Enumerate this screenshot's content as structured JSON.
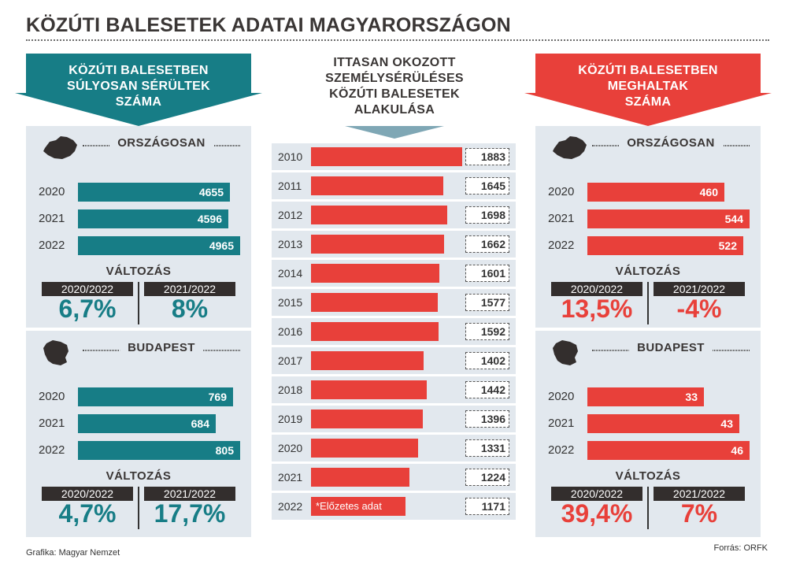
{
  "title": "KÖZÚTI BALESETEK ADATAI MAGYARORSZÁGON",
  "colors": {
    "teal": "#177d86",
    "red": "#e8403a",
    "dark": "#332e2d",
    "panel": "#e2e8ee"
  },
  "left": {
    "header": [
      "KÖZÚTI BALESETBEN",
      "SÚLYOSAN SÉRÜLTEK",
      "SZÁMA"
    ],
    "country": {
      "label": "ORSZÁGOSAN",
      "rows": [
        {
          "year": "2020",
          "value": "4655"
        },
        {
          "year": "2021",
          "value": "4596"
        },
        {
          "year": "2022",
          "value": "4965"
        }
      ],
      "change_title": "VÁLTOZÁS",
      "periods": [
        {
          "label": "2020/2022",
          "value": "6,7%"
        },
        {
          "label": "2021/2022",
          "value": "8%"
        }
      ]
    },
    "budapest": {
      "label": "BUDAPEST",
      "rows": [
        {
          "year": "2020",
          "value": "769"
        },
        {
          "year": "2021",
          "value": "684"
        },
        {
          "year": "2022",
          "value": "805"
        }
      ],
      "change_title": "VÁLTOZÁS",
      "periods": [
        {
          "label": "2020/2022",
          "value": "4,7%"
        },
        {
          "label": "2021/2022",
          "value": "17,7%"
        }
      ]
    }
  },
  "middle": {
    "header": [
      "ITTASAN OKOZOTT",
      "SZEMÉLYSÉRÜLÉSES",
      "KÖZÚTI BALESETEK",
      "ALAKULÁSA"
    ],
    "note": "*Előzetes adat",
    "rows": [
      {
        "year": "2010",
        "value": "1883"
      },
      {
        "year": "2011",
        "value": "1645"
      },
      {
        "year": "2012",
        "value": "1698"
      },
      {
        "year": "2013",
        "value": "1662"
      },
      {
        "year": "2014",
        "value": "1601"
      },
      {
        "year": "2015",
        "value": "1577"
      },
      {
        "year": "2016",
        "value": "1592"
      },
      {
        "year": "2017",
        "value": "1402"
      },
      {
        "year": "2018",
        "value": "1442"
      },
      {
        "year": "2019",
        "value": "1396"
      },
      {
        "year": "2020",
        "value": "1331"
      },
      {
        "year": "2021",
        "value": "1224"
      },
      {
        "year": "2022",
        "value": "1171"
      }
    ]
  },
  "right": {
    "header": [
      "KÖZÚTI BALESETBEN",
      "MEGHALTAK",
      "SZÁMA"
    ],
    "country": {
      "label": "ORSZÁGOSAN",
      "rows": [
        {
          "year": "2020",
          "value": "460"
        },
        {
          "year": "2021",
          "value": "544"
        },
        {
          "year": "2022",
          "value": "522"
        }
      ],
      "change_title": "VÁLTOZÁS",
      "periods": [
        {
          "label": "2020/2022",
          "value": "13,5%"
        },
        {
          "label": "2021/2022",
          "value": "-4%"
        }
      ]
    },
    "budapest": {
      "label": "BUDAPEST",
      "rows": [
        {
          "year": "2020",
          "value": "33"
        },
        {
          "year": "2021",
          "value": "43"
        },
        {
          "year": "2022",
          "value": "46"
        }
      ],
      "change_title": "VÁLTOZÁS",
      "periods": [
        {
          "label": "2020/2022",
          "value": "39,4%"
        },
        {
          "label": "2021/2022",
          "value": "7%"
        }
      ]
    }
  },
  "footer": {
    "credit": "Grafika: Magyar Nemzet",
    "source": "Forrás: ORFK"
  },
  "chart_data": [
    {
      "type": "bar",
      "title": "KÖZÚTI BALESETBEN SÚLYOSAN SÉRÜLTEK SZÁMA",
      "series": [
        {
          "name": "ORSZÁGOSAN",
          "categories": [
            "2020",
            "2021",
            "2022"
          ],
          "values": [
            4655,
            4596,
            4965
          ]
        },
        {
          "name": "BUDAPEST",
          "categories": [
            "2020",
            "2021",
            "2022"
          ],
          "values": [
            769,
            684,
            805
          ]
        }
      ]
    },
    {
      "type": "bar",
      "title": "ITTASAN OKOZOTT SZEMÉLYSÉRÜLÉSES KÖZÚTI BALESETEK ALAKULÁSA",
      "categories": [
        "2010",
        "2011",
        "2012",
        "2013",
        "2014",
        "2015",
        "2016",
        "2017",
        "2018",
        "2019",
        "2020",
        "2021",
        "2022"
      ],
      "values": [
        1883,
        1645,
        1698,
        1662,
        1601,
        1577,
        1592,
        1402,
        1442,
        1396,
        1331,
        1224,
        1171
      ]
    },
    {
      "type": "bar",
      "title": "KÖZÚTI BALESETBEN MEGHALTAK SZÁMA",
      "series": [
        {
          "name": "ORSZÁGOSAN",
          "categories": [
            "2020",
            "2021",
            "2022"
          ],
          "values": [
            460,
            544,
            522
          ]
        },
        {
          "name": "BUDAPEST",
          "categories": [
            "2020",
            "2021",
            "2022"
          ],
          "values": [
            33,
            43,
            46
          ]
        }
      ]
    }
  ]
}
